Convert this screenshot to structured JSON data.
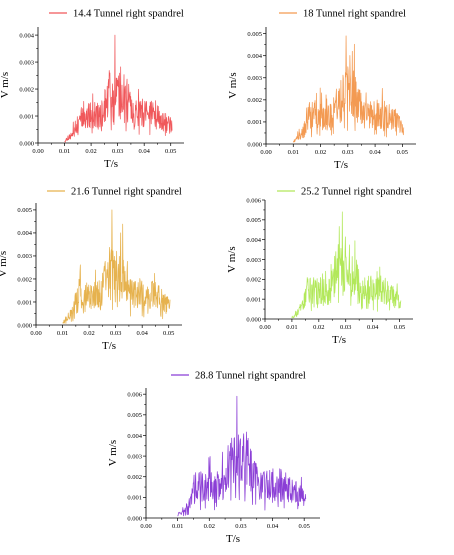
{
  "chart_data": [
    {
      "type": "line",
      "series": [
        {
          "name": "14.4 Tunnel right spandrel",
          "color": "#f0585b",
          "peak": 0.004,
          "seed": 11
        }
      ],
      "xlabel": "T/s",
      "ylabel": "V m/s",
      "xlim": [
        0.0,
        0.055
      ],
      "ylim": [
        0.0,
        0.0043
      ],
      "xticks": [
        "0.00",
        "0.01",
        "0.02",
        "0.03",
        "0.04",
        "0.05"
      ],
      "yticks": [
        "0.000",
        "0.001",
        "0.002",
        "0.003",
        "0.004"
      ]
    },
    {
      "type": "line",
      "series": [
        {
          "name": "18 Tunnel right spandrel",
          "color": "#f39a52",
          "peak": 0.0049,
          "seed": 23
        }
      ],
      "xlabel": "T/s",
      "ylabel": "V m/s",
      "xlim": [
        0.0,
        0.055
      ],
      "ylim": [
        0.0,
        0.0053
      ],
      "xticks": [
        "0.00",
        "0.01",
        "0.02",
        "0.03",
        "0.04",
        "0.05"
      ],
      "yticks": [
        "0.000",
        "0.001",
        "0.002",
        "0.003",
        "0.004",
        "0.005"
      ]
    },
    {
      "type": "line",
      "series": [
        {
          "name": "21.6 Tunnel right spandrel",
          "color": "#e6b24e",
          "peak": 0.005,
          "seed": 37
        }
      ],
      "xlabel": "T/s",
      "ylabel": "V m/s",
      "xlim": [
        0.0,
        0.055
      ],
      "ylim": [
        0.0,
        0.0053
      ],
      "xticks": [
        "0.00",
        "0.01",
        "0.02",
        "0.03",
        "0.04",
        "0.05"
      ],
      "yticks": [
        "0.000",
        "0.001",
        "0.002",
        "0.003",
        "0.004",
        "0.005"
      ]
    },
    {
      "type": "line",
      "series": [
        {
          "name": "25.2 Tunnel right spandrel",
          "color": "#b2e85a",
          "peak": 0.0054,
          "seed": 53
        }
      ],
      "xlabel": "T/s",
      "ylabel": "V m/s",
      "xlim": [
        0.0,
        0.055
      ],
      "ylim": [
        0.0,
        0.006
      ],
      "xticks": [
        "0.00",
        "0.01",
        "0.02",
        "0.03",
        "0.04",
        "0.05"
      ],
      "yticks": [
        "0.000",
        "0.001",
        "0.002",
        "0.003",
        "0.004",
        "0.005",
        "0.006"
      ]
    },
    {
      "type": "line",
      "series": [
        {
          "name": "28.8 Tunnel right spandrel",
          "color": "#8b3fd6",
          "peak": 0.0059,
          "seed": 71
        }
      ],
      "xlabel": "T/s",
      "ylabel": "V m/s",
      "xlim": [
        0.0,
        0.055
      ],
      "ylim": [
        0.0,
        0.0063
      ],
      "xticks": [
        "0.00",
        "0.01",
        "0.02",
        "0.03",
        "0.04",
        "0.05"
      ],
      "yticks": [
        "0.000",
        "0.001",
        "0.002",
        "0.003",
        "0.004",
        "0.005",
        "0.006"
      ]
    }
  ]
}
